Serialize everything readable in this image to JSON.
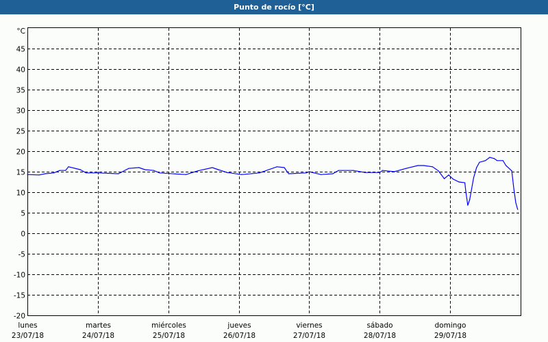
{
  "window": {
    "title": "Punto de rocío [°C]"
  },
  "chart_data": {
    "type": "line",
    "title": "Punto de rocío [°C]",
    "ylabel": "°C",
    "ylim": [
      -20,
      50
    ],
    "yticks": [
      45,
      40,
      35,
      30,
      25,
      20,
      15,
      10,
      5,
      0,
      -5,
      -10,
      -15,
      -20
    ],
    "xlim": [
      "23/07/18 00:00",
      "30/07/18 00:00"
    ],
    "xticks": [
      {
        "day": "lunes",
        "date": "23/07/18"
      },
      {
        "day": "martes",
        "date": "24/07/18"
      },
      {
        "day": "miércoles",
        "date": "25/07/18"
      },
      {
        "day": "jueves",
        "date": "26/07/18"
      },
      {
        "day": "viernes",
        "date": "27/07/18"
      },
      {
        "day": "sábado",
        "date": "28/07/18"
      },
      {
        "day": "domingo",
        "date": "29/07/18"
      }
    ],
    "grid": true,
    "line_color": "#0000ff",
    "series": [
      {
        "x": [
          "23/07/18 00:00",
          "23/07/18 04:00",
          "23/07/18 06:00",
          "23/07/18 09:00",
          "23/07/18 11:00",
          "23/07/18 13:00",
          "23/07/18 14:00",
          "23/07/18 18:00",
          "23/07/18 20:00",
          "24/07/18 00:00",
          "24/07/18 07:00",
          "24/07/18 10:30",
          "24/07/18 14:00",
          "24/07/18 16:00",
          "24/07/18 19:00",
          "24/07/18 21:00",
          "25/07/18 06:00",
          "25/07/18 10:00",
          "25/07/18 15:00",
          "25/07/18 17:00",
          "25/07/18 20:00",
          "26/07/18 01:00",
          "26/07/18 07:00",
          "26/07/18 13:00",
          "26/07/18 15:30",
          "26/07/18 17:00",
          "26/07/18 23:00",
          "27/07/18 00:00",
          "27/07/18 04:00",
          "27/07/18 08:00",
          "27/07/18 10:00",
          "27/07/18 15:00",
          "27/07/18 19:00",
          "28/07/18 00:00",
          "28/07/18 01:00",
          "28/07/18 05:00",
          "28/07/18 09:00",
          "28/07/18 13:00",
          "28/07/18 15:00",
          "28/07/18 18:00",
          "28/07/18 20:00",
          "28/07/18 22:00",
          "28/07/18 23:30",
          "29/07/18 01:00",
          "29/07/18 03:00",
          "29/07/18 05:00",
          "29/07/18 05:20",
          "29/07/18 06:00",
          "29/07/18 06:40",
          "29/07/18 08:00",
          "29/07/18 09:00",
          "29/07/18 10:00",
          "29/07/18 12:00",
          "29/07/18 13:30",
          "29/07/18 15:00",
          "29/07/18 16:00",
          "29/07/18 18:00",
          "29/07/18 19:00",
          "29/07/18 21:00",
          "29/07/18 21:40",
          "29/07/18 22:20",
          "29/07/18 23:00"
        ],
        "y": [
          14.3,
          14.2,
          14.5,
          14.7,
          15.3,
          15.3,
          16.2,
          15.5,
          14.7,
          14.7,
          14.5,
          15.8,
          16.0,
          15.5,
          15.3,
          14.7,
          14.3,
          15.2,
          16.0,
          15.5,
          14.8,
          14.3,
          14.7,
          16.2,
          16.0,
          14.5,
          14.7,
          15.0,
          14.3,
          14.5,
          15.3,
          15.3,
          14.8,
          14.8,
          15.3,
          15.0,
          15.8,
          16.5,
          16.5,
          16.2,
          15.2,
          13.3,
          14.2,
          13.2,
          12.5,
          12.3,
          10.2,
          6.8,
          8.2,
          13.5,
          16.0,
          17.3,
          17.7,
          18.5,
          18.2,
          17.7,
          17.7,
          16.5,
          15.2,
          11.0,
          7.5,
          5.8
        ]
      }
    ]
  }
}
